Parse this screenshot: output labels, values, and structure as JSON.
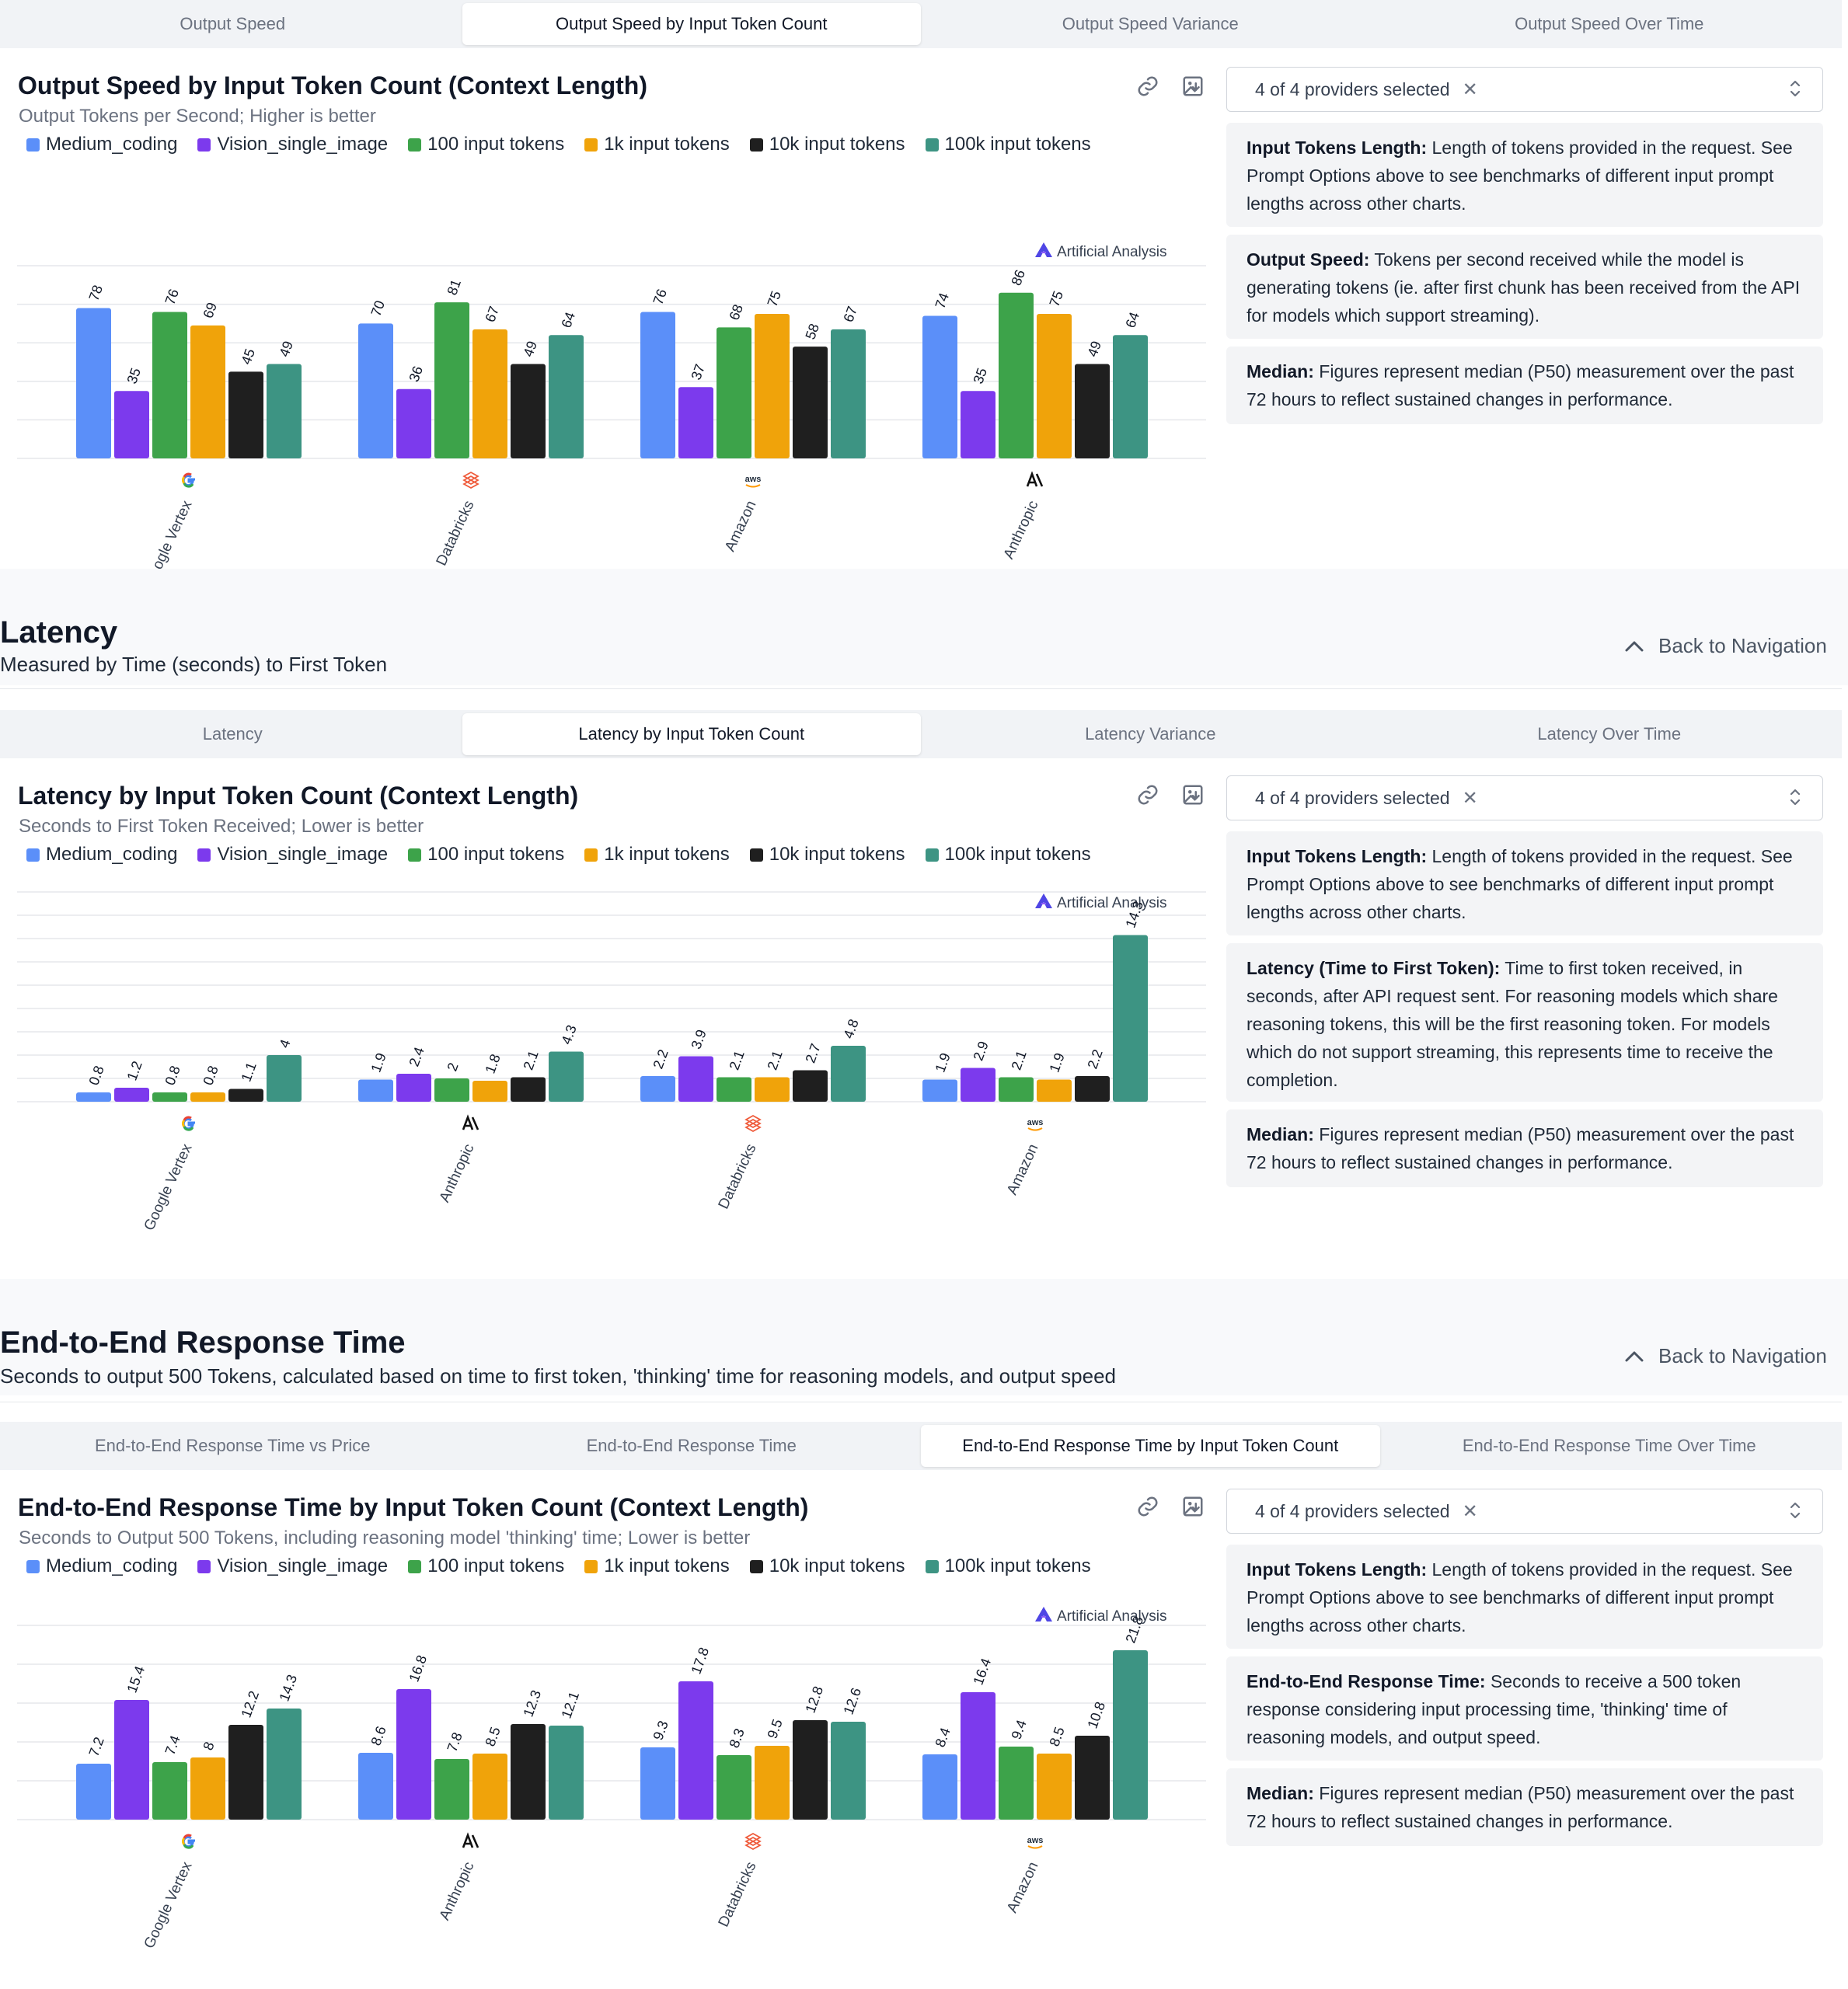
{
  "series_colors": [
    "#5b8ff9",
    "#7c3aed",
    "#3da34a",
    "#f0a30a",
    "#1f1f1f",
    "#3d9483"
  ],
  "legend": [
    "Medium_coding",
    "Vision_single_image",
    "100 input tokens",
    "1k input tokens",
    "10k input tokens",
    "100k input tokens"
  ],
  "brand": "Artificial Analysis",
  "sections": {
    "latency": {
      "title": "Latency",
      "subtitle": "Measured by Time (seconds) to First Token",
      "back_label": "Back to Navigation"
    },
    "e2e": {
      "title": "End-to-End Response Time",
      "subtitle": "Seconds to output 500 Tokens, calculated based on time to first token, 'thinking' time for reasoning models, and output speed",
      "back_label": "Back to Navigation"
    }
  },
  "tabs1": [
    "Output Speed",
    "Output Speed by Input Token Count",
    "Output Speed Variance",
    "Output Speed Over Time"
  ],
  "tabs2": [
    "Latency",
    "Latency by Input Token Count",
    "Latency Variance",
    "Latency Over Time"
  ],
  "tabs3": [
    "End-to-End Response Time vs Price",
    "End-to-End Response Time",
    "End-to-End Response Time by Input Token Count",
    "End-to-End Response Time Over Time"
  ],
  "provider_select_label": "4 of 4 providers selected",
  "panel1": {
    "title": "Output Speed by Input Token Count (Context Length)",
    "subtitle": "Output Tokens per Second; Higher is better",
    "info": [
      {
        "term": "Input Tokens Length:",
        "text": "Length of tokens provided in the request. See Prompt Options above to see benchmarks of different input prompt lengths across other charts."
      },
      {
        "term": "Output Speed:",
        "text": "Tokens per second received while the model is generating tokens (ie. after first chunk has been received from the API for models which support streaming)."
      },
      {
        "term": "Median:",
        "text": "Figures represent median (P50) measurement over the past 72 hours to reflect sustained changes in performance."
      }
    ]
  },
  "panel2": {
    "title": "Latency by Input Token Count (Context Length)",
    "subtitle": "Seconds to First Token Received; Lower is better",
    "info": [
      {
        "term": "Input Tokens Length:",
        "text": "Length of tokens provided in the request. See Prompt Options above to see benchmarks of different input prompt lengths across other charts."
      },
      {
        "term": "Latency (Time to First Token):",
        "text": "Time to first token received, in seconds, after API request sent. For reasoning models which share reasoning tokens, this will be the first reasoning token. For models which do not support streaming, this represents time to receive the completion."
      },
      {
        "term": "Median:",
        "text": "Figures represent median (P50) measurement over the past 72 hours to reflect sustained changes in performance."
      }
    ]
  },
  "panel3": {
    "title": "End-to-End Response Time by Input Token Count (Context Length)",
    "subtitle": "Seconds to Output 500 Tokens, including reasoning model 'thinking' time; Lower is better",
    "info": [
      {
        "term": "Input Tokens Length:",
        "text": "Length of tokens provided in the request. See Prompt Options above to see benchmarks of different input prompt lengths across other charts."
      },
      {
        "term": "End-to-End Response Time:",
        "text": "Seconds to receive a 500 token response considering input processing time, 'thinking' time of reasoning models, and output speed."
      },
      {
        "term": "Median:",
        "text": "Figures represent median (P50) measurement over the past 72 hours to reflect sustained changes in performance."
      }
    ]
  },
  "chart_data": [
    {
      "type": "bar",
      "title": "Output Speed by Input Token Count (Context Length)",
      "subtitle": "Output Tokens per Second; Higher is better",
      "categories": [
        "Google Vertex",
        "Databricks",
        "Amazon",
        "Anthropic"
      ],
      "category_icons": [
        "google-icon",
        "databricks-icon",
        "aws-icon",
        "anthropic-icon"
      ],
      "ylim": [
        0,
        100
      ],
      "grid": true,
      "series": [
        {
          "name": "Medium_coding",
          "values": [
            78,
            70,
            76,
            74
          ]
        },
        {
          "name": "Vision_single_image",
          "values": [
            35,
            36,
            37,
            35
          ]
        },
        {
          "name": "100 input tokens",
          "values": [
            76,
            81,
            68,
            86
          ]
        },
        {
          "name": "1k input tokens",
          "values": [
            69,
            67,
            75,
            75
          ]
        },
        {
          "name": "10k input tokens",
          "values": [
            45,
            49,
            58,
            49
          ]
        },
        {
          "name": "100k input tokens",
          "values": [
            49,
            64,
            67,
            64
          ]
        }
      ]
    },
    {
      "type": "bar",
      "title": "Latency by Input Token Count (Context Length)",
      "subtitle": "Seconds to First Token Received; Lower is better",
      "categories": [
        "Google Vertex",
        "Anthropic",
        "Databricks",
        "Amazon"
      ],
      "category_icons": [
        "google-icon",
        "anthropic-icon",
        "databricks-icon",
        "aws-icon"
      ],
      "ylim": [
        0,
        18
      ],
      "grid": true,
      "series": [
        {
          "name": "Medium_coding",
          "values": [
            0.8,
            1.9,
            2.2,
            1.9
          ]
        },
        {
          "name": "Vision_single_image",
          "values": [
            1.2,
            2.4,
            3.9,
            2.9
          ]
        },
        {
          "name": "100 input tokens",
          "values": [
            0.8,
            2,
            2.1,
            2.1
          ]
        },
        {
          "name": "1k input tokens",
          "values": [
            0.8,
            1.8,
            2.1,
            1.9
          ]
        },
        {
          "name": "10k input tokens",
          "values": [
            1.1,
            2.1,
            2.7,
            2.2
          ]
        },
        {
          "name": "100k input tokens",
          "values": [
            4,
            4.3,
            4.8,
            14.3
          ]
        }
      ]
    },
    {
      "type": "bar",
      "title": "End-to-End Response Time by Input Token Count (Context Length)",
      "subtitle": "Seconds to Output 500 Tokens, including reasoning model 'thinking' time; Lower is better",
      "categories": [
        "Google Vertex",
        "Anthropic",
        "Databricks",
        "Amazon"
      ],
      "category_icons": [
        "google-icon",
        "anthropic-icon",
        "databricks-icon",
        "aws-icon"
      ],
      "ylim": [
        0,
        25
      ],
      "grid": true,
      "series": [
        {
          "name": "Medium_coding",
          "values": [
            7.2,
            8.6,
            9.3,
            8.4
          ]
        },
        {
          "name": "Vision_single_image",
          "values": [
            15.4,
            16.8,
            17.8,
            16.4
          ]
        },
        {
          "name": "100 input tokens",
          "values": [
            7.4,
            7.8,
            8.3,
            9.4
          ]
        },
        {
          "name": "1k input tokens",
          "values": [
            8,
            8.5,
            9.5,
            8.5
          ]
        },
        {
          "name": "10k input tokens",
          "values": [
            12.2,
            12.3,
            12.8,
            10.8
          ]
        },
        {
          "name": "100k input tokens",
          "values": [
            14.3,
            12.1,
            12.6,
            21.8
          ]
        }
      ]
    }
  ]
}
